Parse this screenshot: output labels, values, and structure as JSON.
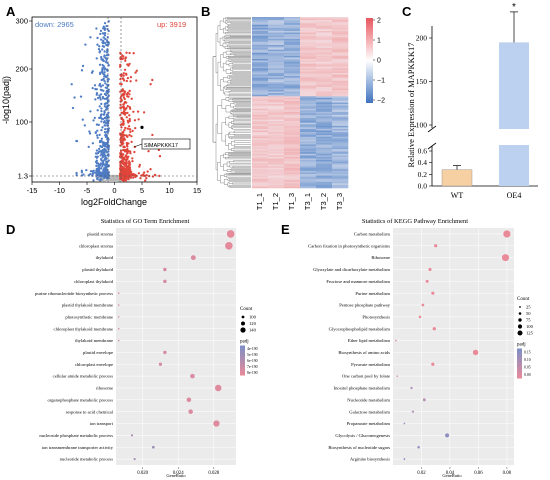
{
  "colors": {
    "down": "#4f7cc4",
    "up": "#e0453a",
    "ns": "#b7b7b7",
    "hm_high": "#f0a6a8",
    "hm_low": "#4d7fc4",
    "wt": "#f6cfa3",
    "oe": "#bcd1ef",
    "dot_low": "#ea8a99",
    "dot_high": "#7c8fc6"
  },
  "chart_data": [
    {
      "panel": "A",
      "type": "scatter",
      "xlabel": "log2FoldChange",
      "ylabel": "-log10(padj)",
      "xlim": [
        -15,
        15
      ],
      "ylim_ticks": [
        "1.3",
        "100",
        "200",
        "300"
      ],
      "xticks": [
        -15,
        -10,
        -5,
        0,
        5,
        10,
        15
      ],
      "down_label": "down: 2965",
      "up_label": "up: 3919",
      "gene_label": "SlMAPKKK17",
      "gene_point": {
        "x": 5.0,
        "y": 95
      },
      "down_count": 2965,
      "up_count": 3919
    },
    {
      "panel": "B",
      "type": "heatmap",
      "columns": [
        "T1_1",
        "T1_2",
        "T1_3",
        "T3_1",
        "T3_2",
        "T3_3"
      ],
      "legend_ticks": [
        "2",
        "1",
        "0",
        "−1",
        "−2"
      ],
      "clusters": [
        {
          "fraction": 0.46,
          "pattern": [
            -1.2,
            -1.0,
            -1.1,
            1.1,
            1.0,
            1.2
          ]
        },
        {
          "fraction": 0.54,
          "pattern": [
            1.1,
            1.0,
            1.2,
            -1.1,
            -1.2,
            -1.0
          ]
        }
      ]
    },
    {
      "panel": "C",
      "type": "bar",
      "categories": [
        "WT",
        "OE4"
      ],
      "values": [
        0.28,
        195
      ],
      "errors": [
        0.07,
        35
      ],
      "ylabel": "Relative Expression of MAPKKK17",
      "yticks": [
        "0.0",
        "0.2",
        "0.4",
        "0.6",
        "100",
        "150",
        "200"
      ],
      "significance": "*",
      "axis_break": true
    },
    {
      "panel": "D",
      "type": "scatter",
      "title": "Statistics of GO Term Enrichment",
      "xlabel": "GeneRatio",
      "xticks": [
        "0.020",
        "0.024",
        "0.028"
      ],
      "xlim": [
        0.017,
        0.0305
      ],
      "size_legend_title": "Count",
      "size_legend": [
        "100",
        "120",
        "140"
      ],
      "color_legend_title": "padj",
      "color_legend": [
        "4e-190",
        "5e-190",
        "6e-190",
        "7e-190",
        "8e-190"
      ],
      "terms": [
        "plastid stroma",
        "chloroplast stroma",
        "thylakoid",
        "plastid thylakoid",
        "chloroplast thylakoid",
        "purine ribonucleotide biosynthetic process",
        "plastid thylakoid membrane",
        "photosynthetic membrane",
        "chloroplast thylakoid membrane",
        "thylakoid membrane",
        "plastid envelope",
        "chloroplast envelope",
        "cellular amide metabolic process",
        "ribosome",
        "organophosphate metabolic process",
        "response to acid chemical",
        "ion transport",
        "nucleoside phosphate metabolic process",
        "ion transmembrane transporter activity",
        "nucleotide metabolic process"
      ],
      "ratios": [
        0.0299,
        0.0297,
        0.0257,
        0.0225,
        0.0225,
        0.0173,
        0.0173,
        0.0173,
        0.0173,
        0.0173,
        0.0225,
        0.022,
        0.0256,
        0.0285,
        0.0252,
        0.0254,
        0.0283,
        0.0188,
        0.0212,
        0.0191
      ],
      "counts": [
        150,
        150,
        125,
        112,
        112,
        95,
        95,
        95,
        95,
        95,
        112,
        110,
        122,
        140,
        122,
        122,
        138,
        100,
        105,
        100
      ],
      "padj_rel": [
        0.05,
        0.05,
        0.15,
        0.2,
        0.2,
        0.25,
        0.25,
        0.25,
        0.25,
        0.25,
        0.2,
        0.2,
        0.15,
        0.1,
        0.15,
        0.15,
        0.1,
        0.6,
        0.7,
        0.65
      ]
    },
    {
      "panel": "E",
      "type": "scatter",
      "title": "Statistics of KEGG Pathway Enrichment",
      "xlabel": "GeneRatio",
      "xticks": [
        "0.02",
        "0.04",
        "0.06",
        "0.08"
      ],
      "xlim": [
        0.0,
        0.085
      ],
      "size_legend_title": "Count",
      "size_legend": [
        "25",
        "50",
        "75",
        "100",
        "125"
      ],
      "color_legend_title": "padj",
      "color_legend": [
        "0.15",
        "0.10",
        "0.05",
        "0.00"
      ],
      "terms": [
        "Carbon metabolism",
        "Carbon fixation in photosynthetic organisms",
        "Ribosome",
        "Glyoxylate and dicarboxylate metabolism",
        "Fructose and mannose metabolism",
        "Purine metabolism",
        "Pentose phosphate pathway",
        "Photosynthesis",
        "Glycerophospholipid metabolism",
        "Ether lipid metabolism",
        "Biosynthesis of amino acids",
        "Pyruvate metabolism",
        "One carbon pool by folate",
        "Inositol phosphate metabolism",
        "Nucleotide metabolism",
        "Galactose metabolism",
        "Propanoate metabolism",
        "Glycolysis / Gluconeogenesis",
        "Biosynthesis of nucleotide sugars",
        "Arginine biosynthesis"
      ],
      "ratios": [
        0.08,
        0.03,
        0.079,
        0.026,
        0.024,
        0.028,
        0.021,
        0.019,
        0.029,
        0.002,
        0.058,
        0.028,
        0.003,
        0.013,
        0.022,
        0.014,
        0.008,
        0.038,
        0.018,
        0.008
      ],
      "counts": [
        120,
        40,
        118,
        38,
        35,
        40,
        30,
        28,
        42,
        8,
        85,
        40,
        8,
        20,
        32,
        20,
        12,
        55,
        26,
        12
      ],
      "padj_rel": [
        0.0,
        0.0,
        0.0,
        0.0,
        0.0,
        0.0,
        0.0,
        0.0,
        0.0,
        0.1,
        0.0,
        0.0,
        0.15,
        0.6,
        0.5,
        0.55,
        0.7,
        0.85,
        0.8,
        0.9
      ]
    }
  ],
  "panel_letters": [
    "A",
    "B",
    "C",
    "D",
    "E"
  ]
}
